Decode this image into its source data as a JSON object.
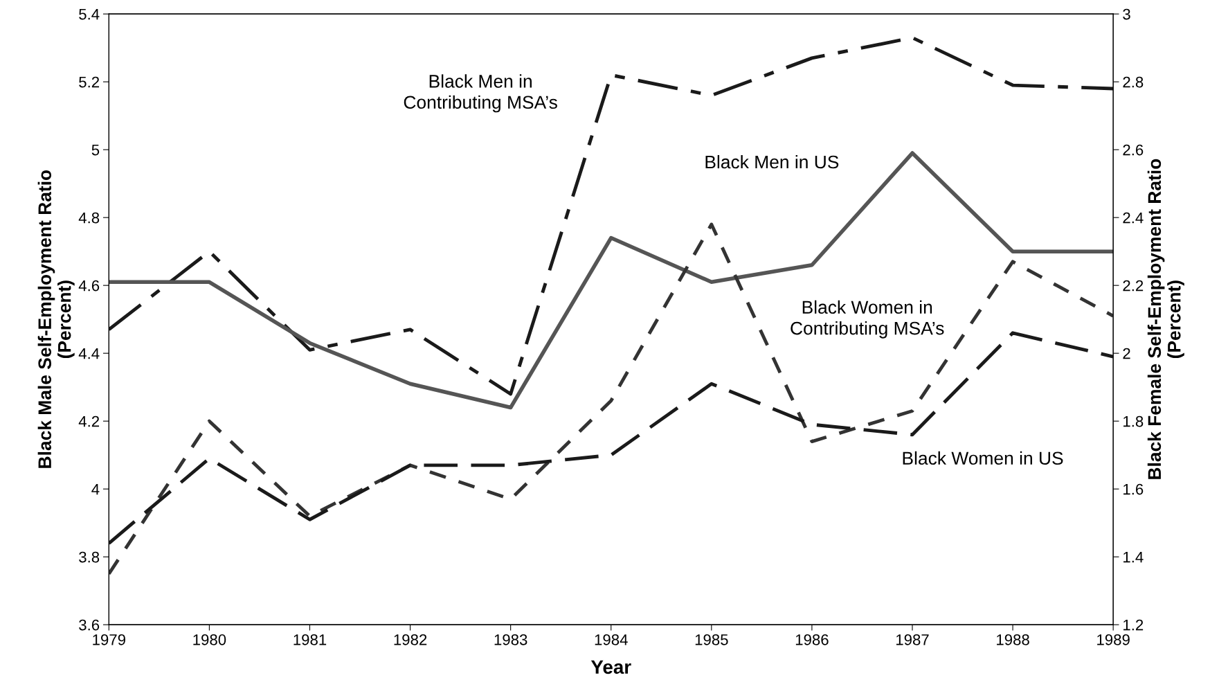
{
  "chart_data": {
    "type": "line",
    "xlabel": "Year",
    "ylabel": "Black Male Self-Employment Ratio\n(Percent)",
    "y2label": "Black Female Self-Employment Ratio\n(Percent)",
    "x": [
      1979,
      1980,
      1981,
      1982,
      1983,
      1984,
      1985,
      1986,
      1987,
      1988,
      1989
    ],
    "series": [
      {
        "name": "Black Men in\nContributing MSA’s",
        "color": "#1a1a1a",
        "line_style": "dashdot",
        "values": [
          4.47,
          4.7,
          4.41,
          4.47,
          4.28,
          5.22,
          5.16,
          5.27,
          5.33,
          5.19,
          5.18
        ]
      },
      {
        "name": "Black Men in US",
        "color": "#555555",
        "line_style": "solid",
        "values": [
          4.61,
          4.61,
          4.43,
          4.31,
          4.24,
          4.74,
          4.61,
          4.66,
          4.99,
          4.7,
          4.7
        ]
      },
      {
        "name": "Black Women in\nContributing MSA’s",
        "color": "#333333",
        "line_style": "dotted",
        "axis": "y2",
        "values": [
          1.35,
          1.8,
          1.52,
          1.67,
          1.57,
          1.86,
          2.38,
          1.74,
          1.83,
          2.27,
          2.11
        ]
      },
      {
        "name": "Black Women in US",
        "color": "#1a1a1a",
        "line_style": "dashed",
        "axis": "y2",
        "values": [
          1.44,
          1.69,
          1.51,
          1.67,
          1.67,
          1.7,
          1.91,
          1.79,
          1.76,
          2.06,
          1.99
        ]
      }
    ],
    "xlim": [
      1979,
      1989
    ],
    "xticks": [
      1979,
      1980,
      1981,
      1982,
      1983,
      1984,
      1985,
      1986,
      1987,
      1988,
      1989
    ],
    "ylim": [
      3.6,
      5.4
    ],
    "yticks": [
      3.6,
      3.8,
      4,
      4.2,
      4.4,
      4.6,
      4.8,
      5,
      5.2,
      5.4
    ],
    "y2lim": [
      1.2,
      3
    ],
    "y2ticks": [
      1.2,
      1.4,
      1.6,
      1.8,
      2,
      2.2,
      2.4,
      2.6,
      2.8,
      3
    ],
    "grid": false,
    "legend": false,
    "marker": "none"
  }
}
